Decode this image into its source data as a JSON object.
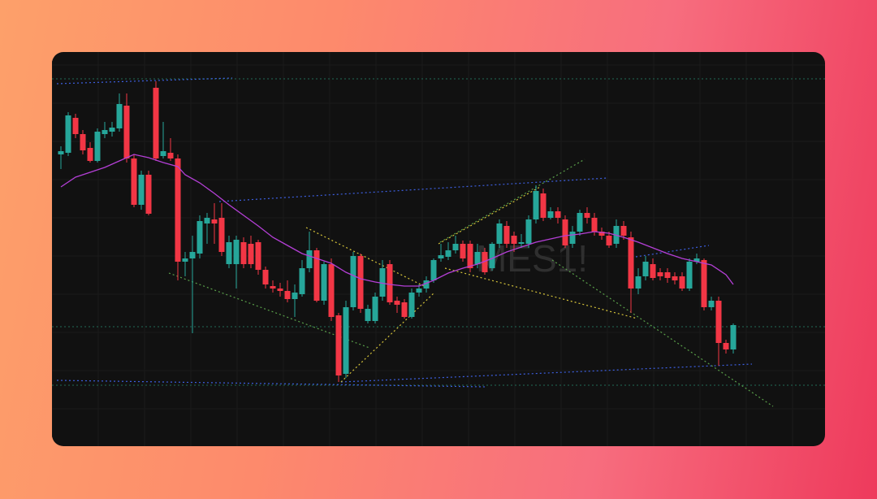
{
  "chart_data": {
    "type": "candlestick",
    "title": "MES1!",
    "up_color": "#26a69a",
    "down_color": "#f23645",
    "ylim": [
      11,
      496
    ],
    "grid": true,
    "candles": {
      "open": [
        370,
        372,
        415,
        395,
        378,
        362,
        395,
        398,
        402,
        430,
        365,
        308,
        345,
        452,
        368,
        372,
        365,
        238,
        242,
        248,
        285,
        290,
        292,
        235,
        235,
        262,
        260,
        262,
        228,
        208,
        205,
        202,
        192,
        198,
        230,
        252,
        190,
        235,
        172,
        100,
        182,
        245,
        165,
        165,
        195,
        235,
        190,
        188,
        170,
        200,
        205,
        215,
        242,
        244,
        252,
        260,
        260,
        235,
        250,
        230,
        260,
        282,
        270,
        260,
        260,
        290,
        322,
        292,
        300,
        290,
        260,
        275,
        298,
        292,
        275,
        270,
        260,
        282,
        268,
        205,
        220,
        235,
        225,
        225,
        220,
        220,
        205,
        238,
        240,
        182,
        190,
        138,
        130
      ],
      "high": [
        380,
        422,
        420,
        400,
        385,
        402,
        410,
        410,
        445,
        445,
        370,
        350,
        350,
        460,
        410,
        390,
        370,
        250,
        270,
        295,
        298,
        310,
        310,
        270,
        270,
        268,
        270,
        265,
        232,
        215,
        212,
        215,
        210,
        240,
        275,
        255,
        238,
        242,
        175,
        190,
        250,
        248,
        185,
        200,
        240,
        240,
        195,
        192,
        205,
        210,
        220,
        242,
        260,
        262,
        270,
        264,
        264,
        260,
        255,
        262,
        290,
        288,
        275,
        272,
        295,
        332,
        328,
        305,
        305,
        295,
        282,
        302,
        305,
        298,
        280,
        275,
        290,
        288,
        275,
        230,
        245,
        242,
        230,
        230,
        225,
        225,
        242,
        248,
        242,
        195,
        195,
        142,
        162
      ],
      "low": [
        352,
        368,
        390,
        370,
        360,
        360,
        390,
        392,
        398,
        360,
        305,
        302,
        295,
        362,
        365,
        362,
        215,
        220,
        150,
        242,
        260,
        260,
        245,
        230,
        205,
        230,
        230,
        222,
        205,
        200,
        195,
        188,
        170,
        195,
        225,
        188,
        185,
        165,
        90,
        95,
        178,
        175,
        162,
        162,
        190,
        185,
        175,
        168,
        168,
        195,
        200,
        212,
        238,
        240,
        248,
        238,
        225,
        230,
        222,
        227,
        255,
        255,
        250,
        255,
        255,
        285,
        288,
        290,
        285,
        255,
        255,
        270,
        285,
        270,
        265,
        255,
        255,
        265,
        175,
        198,
        215,
        215,
        215,
        212,
        210,
        202,
        202,
        235,
        178,
        178,
        110,
        125,
        125
      ],
      "close": [
        374,
        418,
        395,
        375,
        362,
        398,
        400,
        403,
        432,
        365,
        308,
        345,
        297,
        365,
        374,
        365,
        238,
        242,
        250,
        288,
        292,
        285,
        250,
        262,
        265,
        235,
        235,
        228,
        210,
        205,
        202,
        192,
        200,
        230,
        252,
        190,
        235,
        170,
        98,
        182,
        245,
        180,
        180,
        195,
        230,
        188,
        185,
        170,
        200,
        205,
        215,
        240,
        246,
        252,
        260,
        242,
        230,
        250,
        225,
        260,
        285,
        260,
        260,
        262,
        290,
        325,
        292,
        300,
        292,
        258,
        275,
        298,
        292,
        275,
        270,
        258,
        282,
        270,
        205,
        220,
        238,
        218,
        220,
        218,
        215,
        205,
        238,
        242,
        182,
        190,
        138,
        130,
        160
      ]
    },
    "ma": {
      "name": "MA",
      "color": "#b43fd6",
      "x": [
        0,
        2,
        4,
        6,
        8,
        10,
        12,
        14,
        16,
        17,
        19,
        21,
        23,
        25,
        27,
        29,
        31,
        33,
        35,
        37,
        39,
        41,
        43,
        45,
        47,
        49,
        51,
        53,
        55,
        57,
        59,
        61,
        63,
        65,
        67,
        69,
        71,
        73,
        75,
        77,
        79,
        81,
        83,
        85,
        87,
        89,
        91,
        92
      ],
      "values": [
        330,
        342,
        348,
        354,
        362,
        370,
        366,
        360,
        355,
        345,
        335,
        322,
        308,
        295,
        282,
        268,
        258,
        248,
        242,
        236,
        225,
        217,
        213,
        210,
        208,
        208,
        215,
        224,
        230,
        235,
        242,
        250,
        256,
        262,
        266,
        270,
        272,
        275,
        273,
        268,
        262,
        255,
        248,
        242,
        238,
        234,
        222,
        210
      ]
    }
  }
}
